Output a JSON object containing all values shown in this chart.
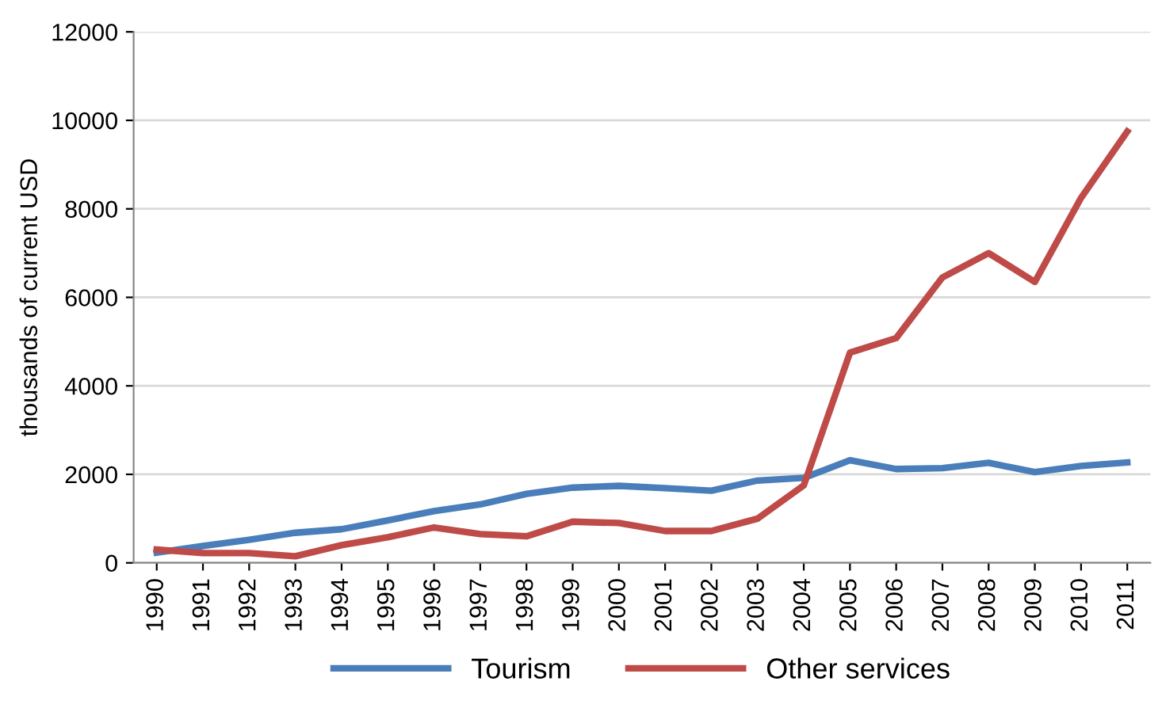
{
  "chart_data": {
    "type": "line",
    "ylabel": "thousands of current USD",
    "categories": [
      "1990",
      "1991",
      "1992",
      "1993",
      "1994",
      "1995",
      "1996",
      "1997",
      "1998",
      "1999",
      "2000",
      "2001",
      "2002",
      "2003",
      "2004",
      "2005",
      "2006",
      "2007",
      "2008",
      "2009",
      "2010",
      "2011"
    ],
    "series": [
      {
        "name": "Tourism",
        "color": "#4a7ebb",
        "values": [
          230,
          380,
          520,
          680,
          760,
          960,
          1170,
          1320,
          1560,
          1700,
          1740,
          1690,
          1630,
          1860,
          1920,
          2320,
          2120,
          2140,
          2260,
          2050,
          2190,
          2270
        ]
      },
      {
        "name": "Other services",
        "color": "#be4b48",
        "values": [
          300,
          220,
          220,
          150,
          400,
          580,
          800,
          650,
          600,
          930,
          900,
          720,
          720,
          1000,
          1750,
          4750,
          5080,
          6450,
          7000,
          6350,
          8250,
          9750
        ]
      }
    ],
    "ylim": [
      0,
      12000
    ],
    "yticks": [
      0,
      2000,
      4000,
      6000,
      8000,
      10000,
      12000
    ],
    "grid": "y",
    "legend": "bottom",
    "marker": "none",
    "line_style": "solid"
  }
}
